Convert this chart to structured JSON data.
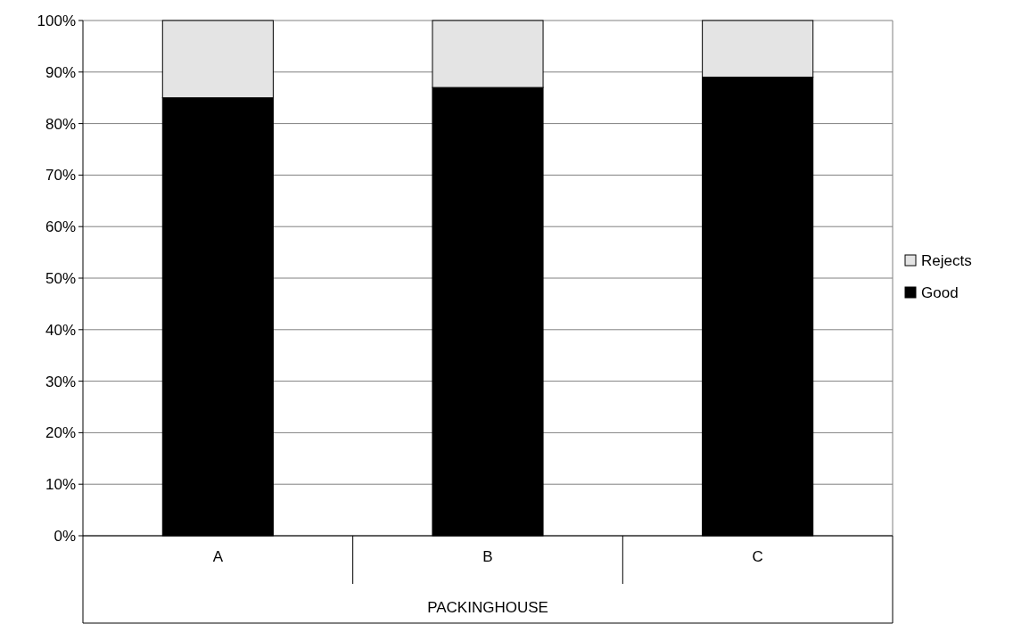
{
  "chart_data": {
    "type": "bar",
    "stacked": true,
    "categories": [
      "A",
      "B",
      "C"
    ],
    "xlabel": "PACKINGHOUSE",
    "series": [
      {
        "name": "Good",
        "color": "#000000",
        "values": [
          85,
          87,
          89
        ]
      },
      {
        "name": "Rejects",
        "color": "#e4e4e4",
        "values": [
          15,
          13,
          11
        ]
      }
    ],
    "ylim": [
      0,
      100
    ],
    "yticks": [
      {
        "value": 0,
        "label": "0%"
      },
      {
        "value": 10,
        "label": "10%"
      },
      {
        "value": 20,
        "label": "20%"
      },
      {
        "value": 30,
        "label": "30%"
      },
      {
        "value": 40,
        "label": "40%"
      },
      {
        "value": 50,
        "label": "50%"
      },
      {
        "value": 60,
        "label": "60%"
      },
      {
        "value": 70,
        "label": "70%"
      },
      {
        "value": 80,
        "label": "80%"
      },
      {
        "value": 90,
        "label": "90%"
      },
      {
        "value": 100,
        "label": "100%"
      }
    ],
    "grid": "y",
    "legend": "right"
  }
}
